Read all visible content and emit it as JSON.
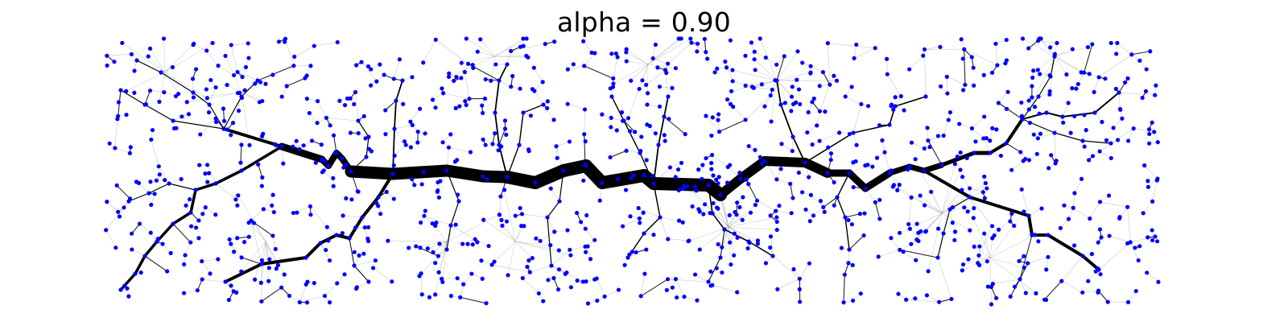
{
  "title": "alpha = 0.90",
  "colors": {
    "background": "#ffffff",
    "edge": "#000000",
    "faint_edge": "#9a9a9a",
    "node": "#0000ff"
  }
}
